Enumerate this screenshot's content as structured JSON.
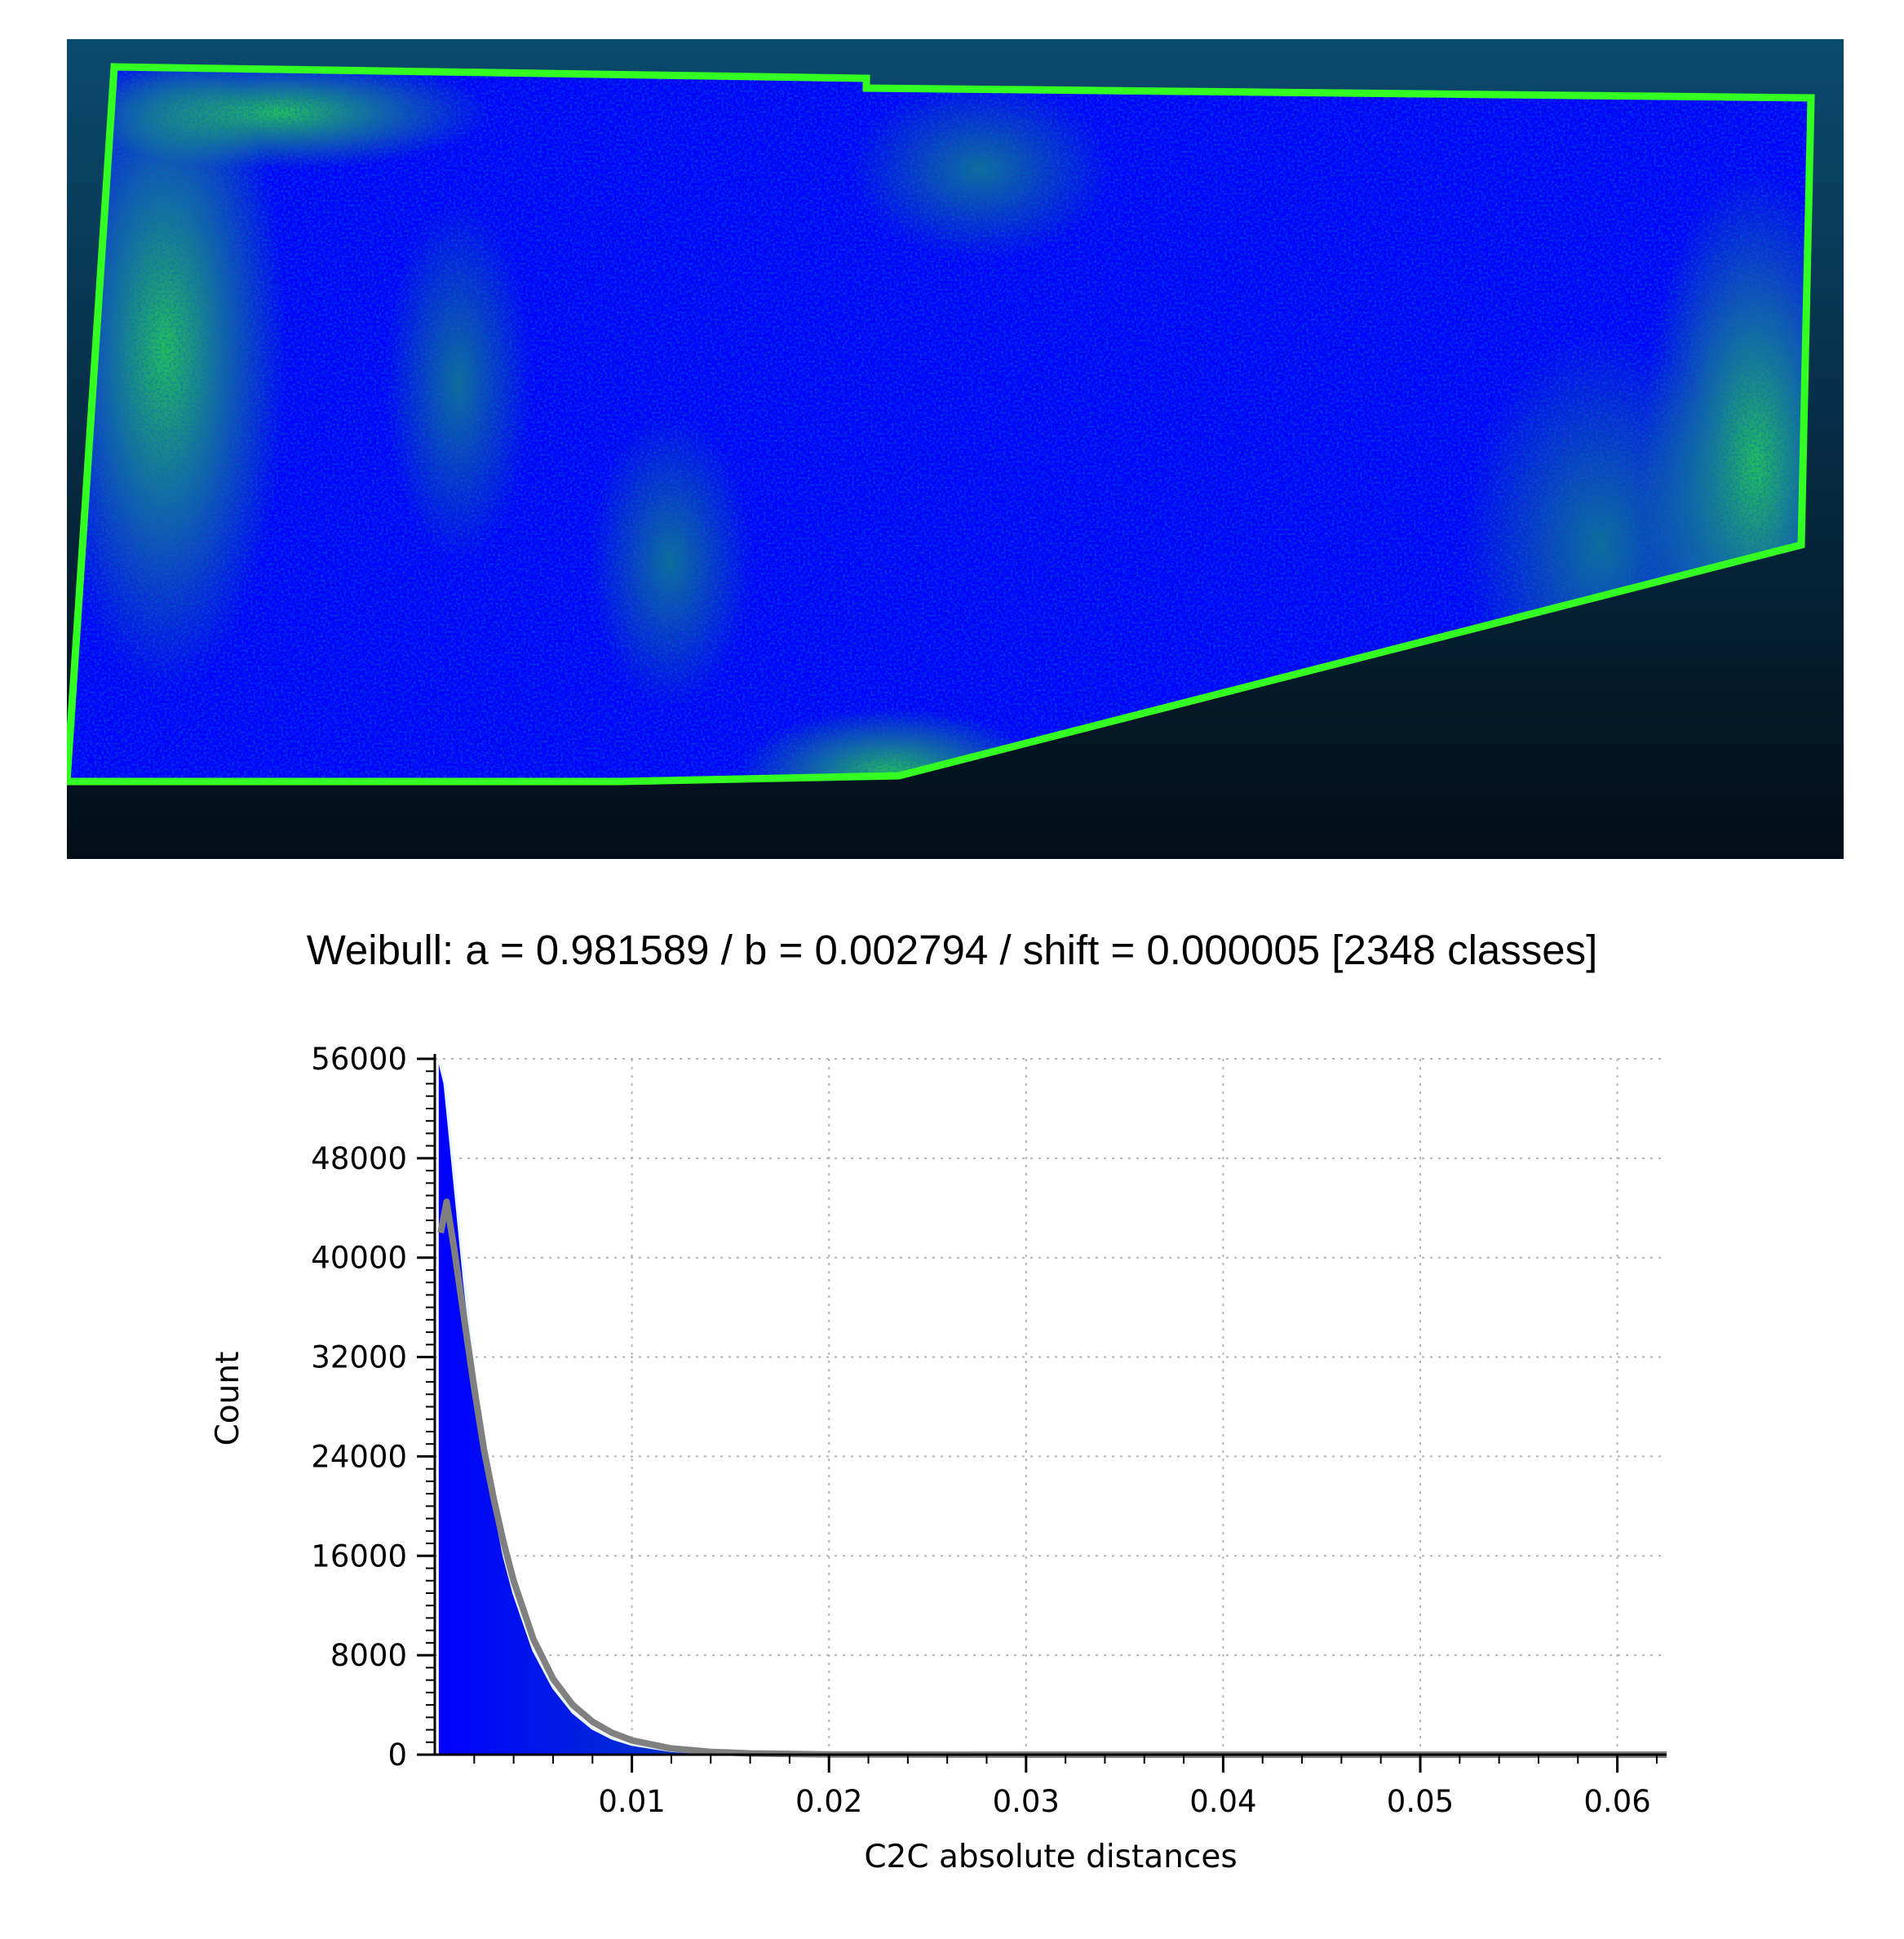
{
  "viewport": {
    "background_top": "#0a4a6e",
    "background_bottom": "#020d17",
    "near_color": "#0000ff",
    "far_color": "#33ff22"
  },
  "title": "Weibull: a = 0.981589 / b = 0.002794 / shift = 0.000005 [2348 classes]",
  "chart_data": {
    "type": "area",
    "title": "Weibull: a = 0.981589 / b = 0.002794 / shift = 0.000005 [2348 classes]",
    "xlabel": "C2C absolute distances",
    "ylabel": "Count",
    "xlim": [
      0,
      0.0625
    ],
    "ylim": [
      0,
      56000
    ],
    "x_ticks": [
      0.01,
      0.02,
      0.03,
      0.04,
      0.05,
      0.06
    ],
    "x_tick_labels": [
      "0.01",
      "0.02",
      "0.03",
      "0.04",
      "0.05",
      "0.06"
    ],
    "y_ticks": [
      0,
      8000,
      16000,
      24000,
      32000,
      40000,
      48000,
      56000
    ],
    "y_tick_labels": [
      "0",
      "8000",
      "16000",
      "24000",
      "32000",
      "40000",
      "48000",
      "56000"
    ],
    "grid": true,
    "series": [
      {
        "kind": "histogram",
        "color_start": "#0000ff",
        "color_end": "#00ff00",
        "x": [
          0.0002,
          0.0005,
          0.001,
          0.0015,
          0.002,
          0.0025,
          0.003,
          0.0035,
          0.004,
          0.005,
          0.006,
          0.007,
          0.008,
          0.009,
          0.01,
          0.012,
          0.014,
          0.016,
          0.02,
          0.03,
          0.04,
          0.05,
          0.06,
          0.0625
        ],
        "values": [
          56000,
          54000,
          46000,
          38000,
          31000,
          25000,
          20000,
          16000,
          13000,
          8400,
          5400,
          3400,
          2100,
          1300,
          800,
          300,
          120,
          60,
          20,
          8,
          4,
          2,
          1,
          0
        ]
      },
      {
        "kind": "fit",
        "color": "#808080",
        "x": [
          0.0003,
          0.0006,
          0.001,
          0.0015,
          0.002,
          0.0025,
          0.003,
          0.0035,
          0.004,
          0.005,
          0.006,
          0.007,
          0.008,
          0.009,
          0.01,
          0.012,
          0.014,
          0.016,
          0.02,
          0.03,
          0.04,
          0.05,
          0.06,
          0.0625
        ],
        "values": [
          42000,
          44500,
          40500,
          35000,
          29500,
          24500,
          20500,
          17000,
          14000,
          9300,
          6100,
          4000,
          2650,
          1750,
          1150,
          500,
          220,
          100,
          20,
          3,
          1,
          0,
          0,
          0
        ]
      }
    ]
  }
}
